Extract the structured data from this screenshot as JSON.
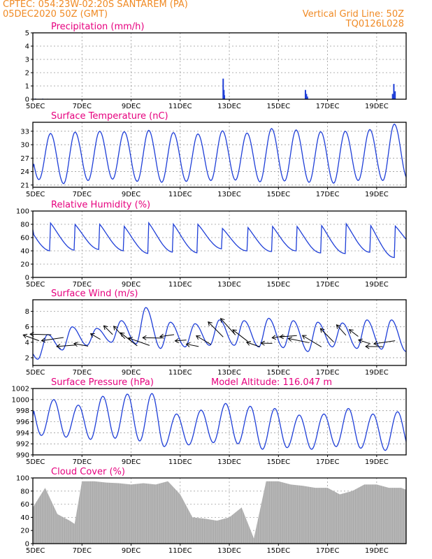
{
  "header": {
    "source_line": "CPTEC:   054:23W-02:20S   SANTAREM (PA)",
    "date_line": "05DEC2020 50Z (GMT)",
    "grid_line": "Vertical Grid Line: 50Z",
    "code": "TQ0126L028"
  },
  "colors": {
    "header": "#f08a24",
    "title": "#e6007e",
    "line": "#1f3fd8",
    "cloud": "#a8a8a8",
    "arrow": "#000000"
  },
  "x_axis": {
    "labels": [
      "5DEC",
      "7DEC",
      "9DEC",
      "11DEC",
      "13DEC",
      "15DEC",
      "17DEC",
      "19DEC"
    ],
    "label_days": [
      0,
      2,
      4,
      6,
      8,
      10,
      12,
      14
    ],
    "range_days": [
      0,
      15.2
    ]
  },
  "chart_data": [
    {
      "id": "precipitation",
      "type": "bar",
      "title": "Precipitation (mm/h)",
      "ylim": [
        0,
        5
      ],
      "yticks": [
        0,
        1,
        2,
        3,
        4,
        5
      ],
      "x_days": [
        0.1,
        0.4,
        0.6,
        7.75,
        7.78,
        7.8,
        11.1,
        11.14,
        11.18,
        14.65,
        14.7,
        14.75
      ],
      "values": [
        0.05,
        0.04,
        0.03,
        1.55,
        0.7,
        0.3,
        0.7,
        0.4,
        0.2,
        0.4,
        1.15,
        0.6
      ]
    },
    {
      "id": "temperature",
      "type": "line",
      "title": "Surface Temperature (nC)",
      "ylim": [
        20.5,
        35
      ],
      "yticks": [
        21,
        24,
        27,
        30,
        33
      ],
      "daily_min": [
        22.2,
        21.3,
        22.0,
        22.3,
        21.8,
        21.6,
        21.8,
        22.0,
        22.1,
        21.7,
        21.9,
        21.6,
        21.4,
        22.0,
        22.0,
        22.5
      ],
      "daily_max": [
        32.5,
        32.8,
        33.0,
        32.9,
        33.2,
        32.7,
        32.4,
        33.1,
        32.6,
        33.6,
        33.3,
        32.9,
        33.0,
        33.4,
        34.6,
        33.5
      ],
      "x_start_value": 24.9
    },
    {
      "id": "humidity",
      "type": "line",
      "title": "Relative Humidity (%)",
      "ylim": [
        0,
        100
      ],
      "yticks": [
        0,
        20,
        40,
        60,
        80,
        100
      ],
      "daily_min": [
        40,
        41,
        42,
        40,
        36,
        38,
        37,
        43,
        40,
        39,
        40,
        37,
        36,
        38,
        30,
        45
      ],
      "daily_max": [
        93,
        90,
        91,
        88,
        94,
        92,
        90,
        83,
        87,
        89,
        90,
        92,
        95,
        94,
        88,
        50
      ],
      "x_start_value": 72
    },
    {
      "id": "wind",
      "type": "line",
      "title": "Surface Wind (m/s)",
      "ylim": [
        1,
        9.5
      ],
      "yticks": [
        2,
        4,
        6,
        8
      ],
      "daily_min": [
        1.8,
        3.0,
        3.6,
        4.0,
        3.8,
        3.2,
        3.4,
        3.6,
        3.6,
        3.4,
        3.3,
        2.8,
        3.4,
        3.2,
        3.1,
        2.8
      ],
      "daily_max": [
        5.0,
        6.0,
        5.8,
        6.8,
        8.5,
        6.6,
        6.4,
        6.9,
        6.8,
        7.1,
        6.8,
        6.6,
        6.5,
        6.9,
        6.9,
        6.0
      ],
      "x_start_value": 2.5,
      "arrows_per_day": 2
    },
    {
      "id": "pressure",
      "type": "line",
      "title": "Surface Pressure (hPa)",
      "annotation": "Model Altitude: 116.047 m",
      "ylim": [
        990,
        1002
      ],
      "yticks": [
        990,
        992,
        994,
        996,
        998,
        1000,
        1002
      ],
      "daily_min": [
        993.5,
        993.2,
        992.8,
        993.0,
        992.5,
        991.5,
        991.8,
        992.2,
        992.0,
        991.0,
        991.3,
        991.0,
        991.5,
        991.2,
        990.8,
        991.0
      ],
      "daily_max": [
        1000.0,
        999.0,
        1000.6,
        1001.0,
        1001.1,
        997.4,
        998.1,
        999.3,
        998.8,
        998.4,
        997.2,
        997.4,
        998.4,
        997.4,
        997.8,
        994.0
      ],
      "x_start_value": 997.0
    },
    {
      "id": "cloud",
      "type": "area",
      "title": "Cloud Cover (%)",
      "ylim": [
        0,
        100
      ],
      "yticks": [
        0,
        20,
        40,
        60,
        80,
        100
      ],
      "x_days": [
        0,
        0.5,
        1.0,
        1.5,
        1.7,
        2.0,
        2.5,
        3.0,
        3.5,
        4.0,
        4.5,
        5.0,
        5.5,
        6.0,
        6.5,
        7.0,
        7.5,
        8.0,
        8.5,
        9.0,
        9.5,
        10.0,
        10.5,
        11.0,
        11.5,
        12.0,
        12.5,
        13.0,
        13.5,
        14.0,
        14.5,
        15.0,
        15.2
      ],
      "values": [
        55,
        85,
        45,
        35,
        30,
        95,
        95,
        93,
        92,
        90,
        92,
        90,
        95,
        75,
        40,
        38,
        35,
        40,
        55,
        8,
        95,
        95,
        90,
        88,
        85,
        85,
        75,
        80,
        90,
        90,
        85,
        85,
        82
      ]
    }
  ]
}
